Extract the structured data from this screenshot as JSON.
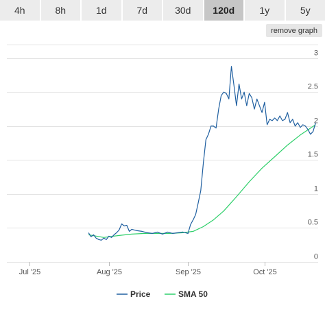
{
  "range_tabs": {
    "items": [
      {
        "label": "4h"
      },
      {
        "label": "8h"
      },
      {
        "label": "1d"
      },
      {
        "label": "7d"
      },
      {
        "label": "30d"
      },
      {
        "label": "120d",
        "active": true
      },
      {
        "label": "1y"
      },
      {
        "label": "5y"
      }
    ]
  },
  "remove_graph_label": "remove graph",
  "colors": {
    "price": "#1f5fa0",
    "sma": "#2ecf6a",
    "grid": "#e3e3e3",
    "tab_bg": "#ececec",
    "tab_active_bg": "#c6c6c6"
  },
  "chart_data": {
    "type": "line",
    "x_tick_labels": [
      "Jul '25",
      "Aug '25",
      "Sep '25",
      "Oct '25"
    ],
    "x_tick_dates": [
      "2025-07-01",
      "2025-08-01",
      "2025-09-01",
      "2025-10-01"
    ],
    "x_range": [
      "2025-06-22",
      "2025-10-22"
    ],
    "y_ticks": [
      0,
      0.5,
      1,
      1.5,
      2,
      2.5,
      3
    ],
    "y_tick_labels": [
      "0",
      "0.5",
      "1",
      "1.5",
      "2",
      "2.5",
      "3"
    ],
    "ylim": [
      0,
      3.2
    ],
    "grid": true,
    "legend_position": "bottom",
    "series": [
      {
        "name": "Price",
        "x": [
          "2025-07-24",
          "2025-07-25",
          "2025-07-26",
          "2025-07-27",
          "2025-07-28",
          "2025-07-29",
          "2025-07-30",
          "2025-07-31",
          "2025-08-01",
          "2025-08-02",
          "2025-08-03",
          "2025-08-04",
          "2025-08-05",
          "2025-08-06",
          "2025-08-07",
          "2025-08-08",
          "2025-08-09",
          "2025-08-10",
          "2025-08-12",
          "2025-08-14",
          "2025-08-16",
          "2025-08-18",
          "2025-08-20",
          "2025-08-22",
          "2025-08-24",
          "2025-08-26",
          "2025-08-28",
          "2025-08-30",
          "2025-09-01",
          "2025-09-02",
          "2025-09-03",
          "2025-09-04",
          "2025-09-05",
          "2025-09-06",
          "2025-09-07",
          "2025-09-08",
          "2025-09-09",
          "2025-09-10",
          "2025-09-11",
          "2025-09-12",
          "2025-09-13",
          "2025-09-14",
          "2025-09-15",
          "2025-09-16",
          "2025-09-17",
          "2025-09-18",
          "2025-09-19",
          "2025-09-20",
          "2025-09-21",
          "2025-09-22",
          "2025-09-23",
          "2025-09-24",
          "2025-09-25",
          "2025-09-26",
          "2025-09-27",
          "2025-09-28",
          "2025-09-29",
          "2025-09-30",
          "2025-10-01",
          "2025-10-02",
          "2025-10-03",
          "2025-10-04",
          "2025-10-05",
          "2025-10-06",
          "2025-10-07",
          "2025-10-08",
          "2025-10-09",
          "2025-10-10",
          "2025-10-11",
          "2025-10-12",
          "2025-10-13",
          "2025-10-14",
          "2025-10-15",
          "2025-10-16",
          "2025-10-17",
          "2025-10-18",
          "2025-10-19",
          "2025-10-20",
          "2025-10-21"
        ],
        "y": [
          0.43,
          0.37,
          0.4,
          0.35,
          0.33,
          0.32,
          0.35,
          0.33,
          0.38,
          0.36,
          0.4,
          0.43,
          0.47,
          0.56,
          0.53,
          0.54,
          0.45,
          0.48,
          0.46,
          0.45,
          0.43,
          0.42,
          0.44,
          0.41,
          0.44,
          0.42,
          0.43,
          0.44,
          0.42,
          0.55,
          0.62,
          0.7,
          0.87,
          1.05,
          1.45,
          1.8,
          1.88,
          2.0,
          2.0,
          1.97,
          2.25,
          2.45,
          2.5,
          2.48,
          2.4,
          2.88,
          2.6,
          2.3,
          2.62,
          2.4,
          2.5,
          2.3,
          2.48,
          2.42,
          2.25,
          2.4,
          2.3,
          2.2,
          2.35,
          2.02,
          2.1,
          2.08,
          2.12,
          2.08,
          2.15,
          2.08,
          2.1,
          2.2,
          2.05,
          2.1,
          2.0,
          2.05,
          1.98,
          2.02,
          2.0,
          1.95,
          1.88,
          1.92,
          2.05
        ]
      },
      {
        "name": "SMA 50",
        "x": [
          "2025-07-24",
          "2025-07-30",
          "2025-08-05",
          "2025-08-10",
          "2025-08-15",
          "2025-08-20",
          "2025-08-25",
          "2025-08-30",
          "2025-09-03",
          "2025-09-07",
          "2025-09-11",
          "2025-09-15",
          "2025-09-20",
          "2025-09-25",
          "2025-09-30",
          "2025-10-05",
          "2025-10-10",
          "2025-10-15",
          "2025-10-21"
        ],
        "y": [
          0.4,
          0.36,
          0.39,
          0.41,
          0.42,
          0.42,
          0.42,
          0.43,
          0.45,
          0.52,
          0.62,
          0.75,
          0.96,
          1.18,
          1.38,
          1.55,
          1.72,
          1.87,
          2.02
        ]
      }
    ]
  }
}
